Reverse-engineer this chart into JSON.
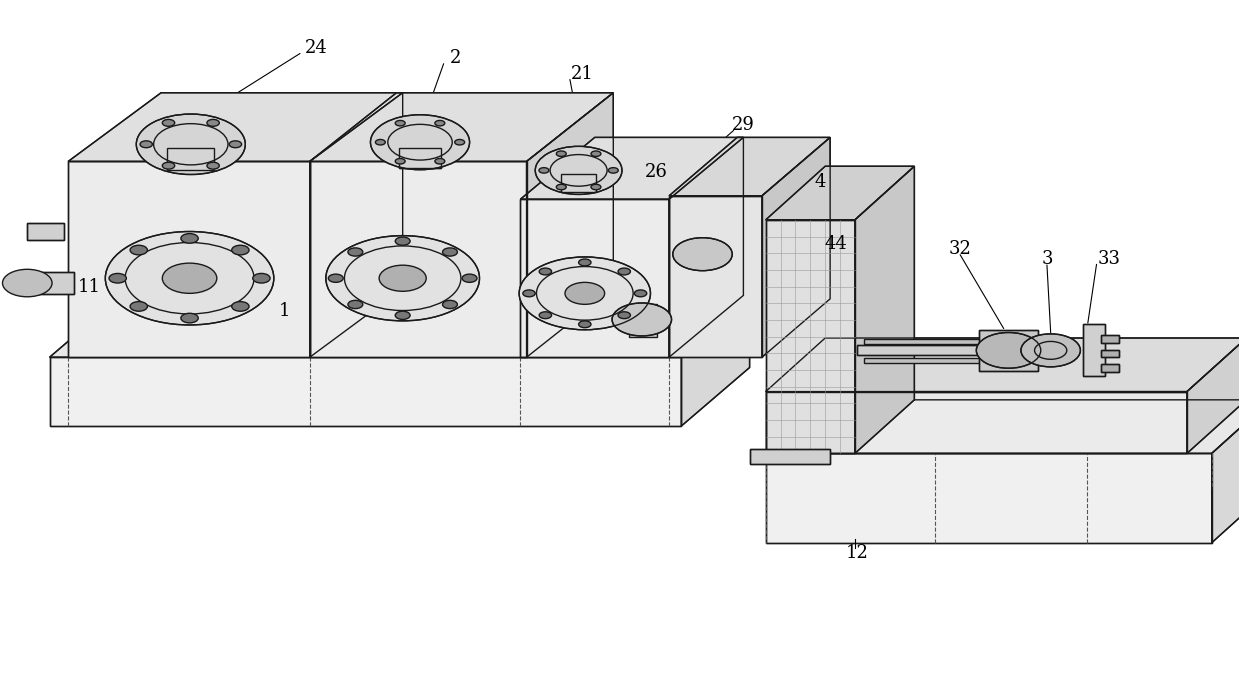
{
  "background_color": "#ffffff",
  "figure_width": 12.39,
  "figure_height": 6.87,
  "dpi": 100,
  "line_color": "#1a1a1a",
  "line_width": 1.0,
  "font_size": 13,
  "font_family": "serif"
}
